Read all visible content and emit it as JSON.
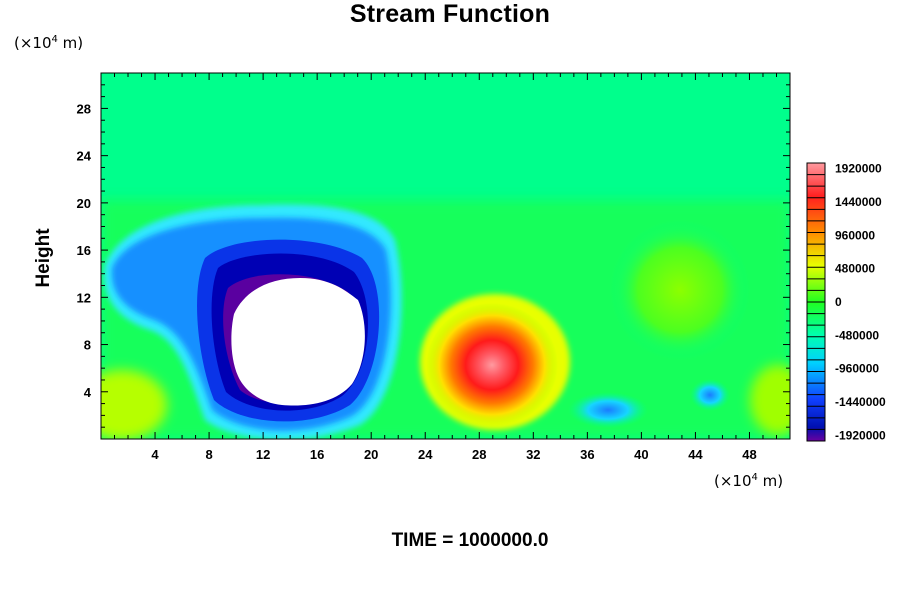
{
  "chart_data": {
    "type": "heatmap",
    "title": "Stream Function",
    "ylabel": "Height",
    "xunit": "(×10^4 m)",
    "yunit": "(×10^4 m)",
    "xlim": [
      0,
      51
    ],
    "ylim": [
      0,
      31
    ],
    "xticks": [
      4,
      8,
      12,
      16,
      20,
      24,
      28,
      32,
      36,
      40,
      44,
      48
    ],
    "yticks": [
      4,
      8,
      12,
      16,
      20,
      24,
      28
    ],
    "colorbar": {
      "labels": [
        "1920000",
        "1440000",
        "960000",
        "480000",
        "0",
        "-480000",
        "-960000",
        "-1440000",
        "-1920000"
      ],
      "range": [
        -2000000,
        2000000
      ]
    },
    "features": [
      {
        "name": "vortex-negative",
        "x": 14,
        "y": 8,
        "value": -1920000
      },
      {
        "name": "vortex-positive",
        "x": 29,
        "y": 6,
        "value": 1920000
      },
      {
        "name": "small-low-1",
        "x": 38,
        "y": 2,
        "value": -960000
      },
      {
        "name": "small-low-2",
        "x": 45,
        "y": 3.5,
        "value": -960000
      },
      {
        "name": "upper-right-rise",
        "x": 44,
        "y": 11,
        "value": 480000
      }
    ]
  },
  "footer": {
    "time_label": "TIME = 1000000.0"
  }
}
